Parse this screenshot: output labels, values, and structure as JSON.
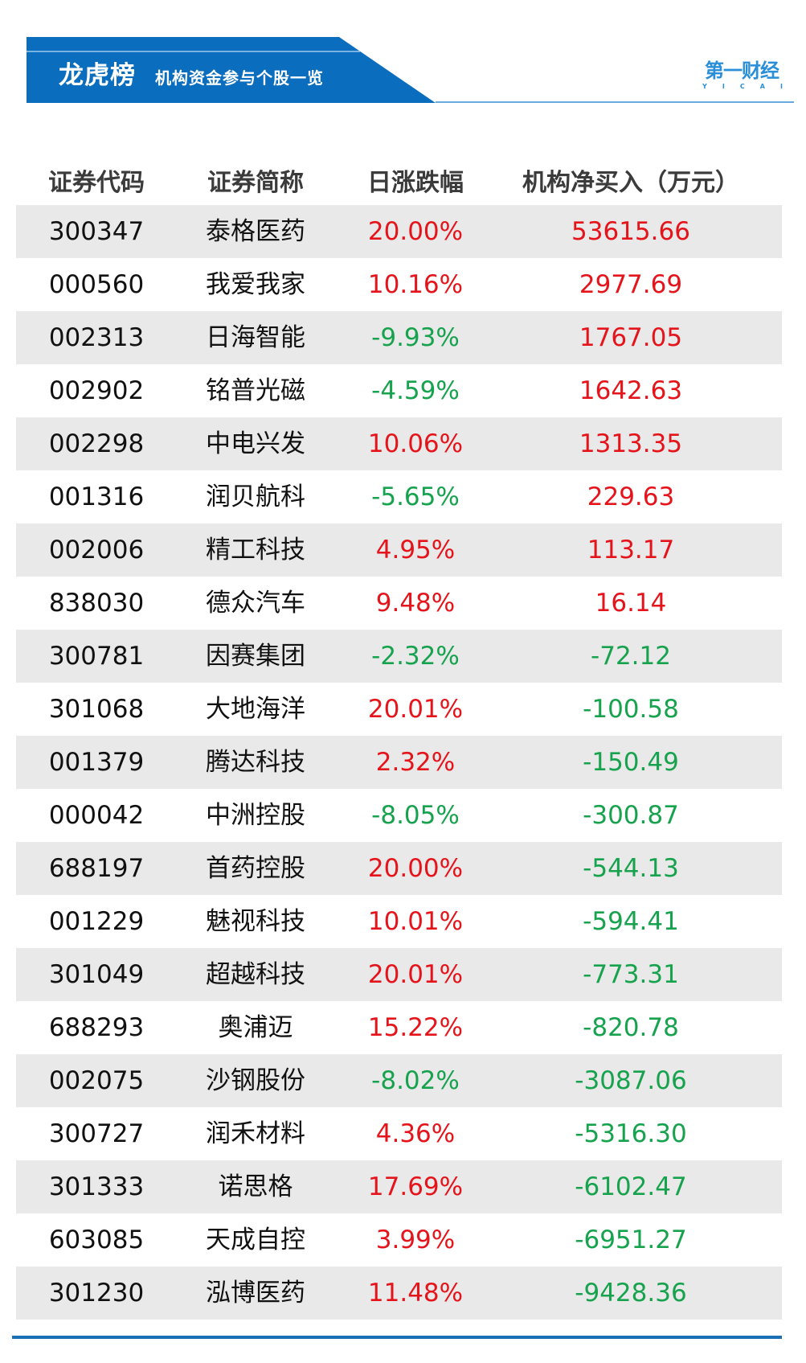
{
  "banner": {
    "title": "龙虎榜",
    "subtitle": "机构资金参与个股一览",
    "color": "#0b6dbd"
  },
  "logo": {
    "cn": "第一财经",
    "en": [
      "Y",
      "I",
      "C",
      "A",
      "I"
    ],
    "color": "#2a8fd8"
  },
  "colors": {
    "up": "#e5141b",
    "down": "#17a24e",
    "row_alt_bg": "#e9e9e9",
    "header_text": "#3b3b3b"
  },
  "table": {
    "headers": [
      "证券代码",
      "证券简称",
      "日涨跌幅",
      "机构净买入（万元）"
    ],
    "rows": [
      {
        "code": "300347",
        "name": "泰格医药",
        "pct": "20.00%",
        "net": "53615.66"
      },
      {
        "code": "000560",
        "name": "我爱我家",
        "pct": "10.16%",
        "net": "2977.69"
      },
      {
        "code": "002313",
        "name": "日海智能",
        "pct": "-9.93%",
        "net": "1767.05"
      },
      {
        "code": "002902",
        "name": "铭普光磁",
        "pct": "-4.59%",
        "net": "1642.63"
      },
      {
        "code": "002298",
        "name": "中电兴发",
        "pct": "10.06%",
        "net": "1313.35"
      },
      {
        "code": "001316",
        "name": "润贝航科",
        "pct": "-5.65%",
        "net": "229.63"
      },
      {
        "code": "002006",
        "name": "精工科技",
        "pct": "4.95%",
        "net": "113.17"
      },
      {
        "code": "838030",
        "name": "德众汽车",
        "pct": "9.48%",
        "net": "16.14"
      },
      {
        "code": "300781",
        "name": "因赛集团",
        "pct": "-2.32%",
        "net": "-72.12"
      },
      {
        "code": "301068",
        "name": "大地海洋",
        "pct": "20.01%",
        "net": "-100.58"
      },
      {
        "code": "001379",
        "name": "腾达科技",
        "pct": "2.32%",
        "net": "-150.49"
      },
      {
        "code": "000042",
        "name": "中洲控股",
        "pct": "-8.05%",
        "net": "-300.87"
      },
      {
        "code": "688197",
        "name": "首药控股",
        "pct": "20.00%",
        "net": "-544.13"
      },
      {
        "code": "001229",
        "name": "魅视科技",
        "pct": "10.01%",
        "net": "-594.41"
      },
      {
        "code": "301049",
        "name": "超越科技",
        "pct": "20.01%",
        "net": "-773.31"
      },
      {
        "code": "688293",
        "name": "奥浦迈",
        "pct": "15.22%",
        "net": "-820.78"
      },
      {
        "code": "002075",
        "name": "沙钢股份",
        "pct": "-8.02%",
        "net": "-3087.06"
      },
      {
        "code": "300727",
        "name": "润禾材料",
        "pct": "4.36%",
        "net": "-5316.30"
      },
      {
        "code": "301333",
        "name": "诺思格",
        "pct": "17.69%",
        "net": "-6102.47"
      },
      {
        "code": "603085",
        "name": "天成自控",
        "pct": "3.99%",
        "net": "-6951.27"
      },
      {
        "code": "301230",
        "name": "泓博医药",
        "pct": "11.48%",
        "net": "-9428.36"
      }
    ]
  }
}
